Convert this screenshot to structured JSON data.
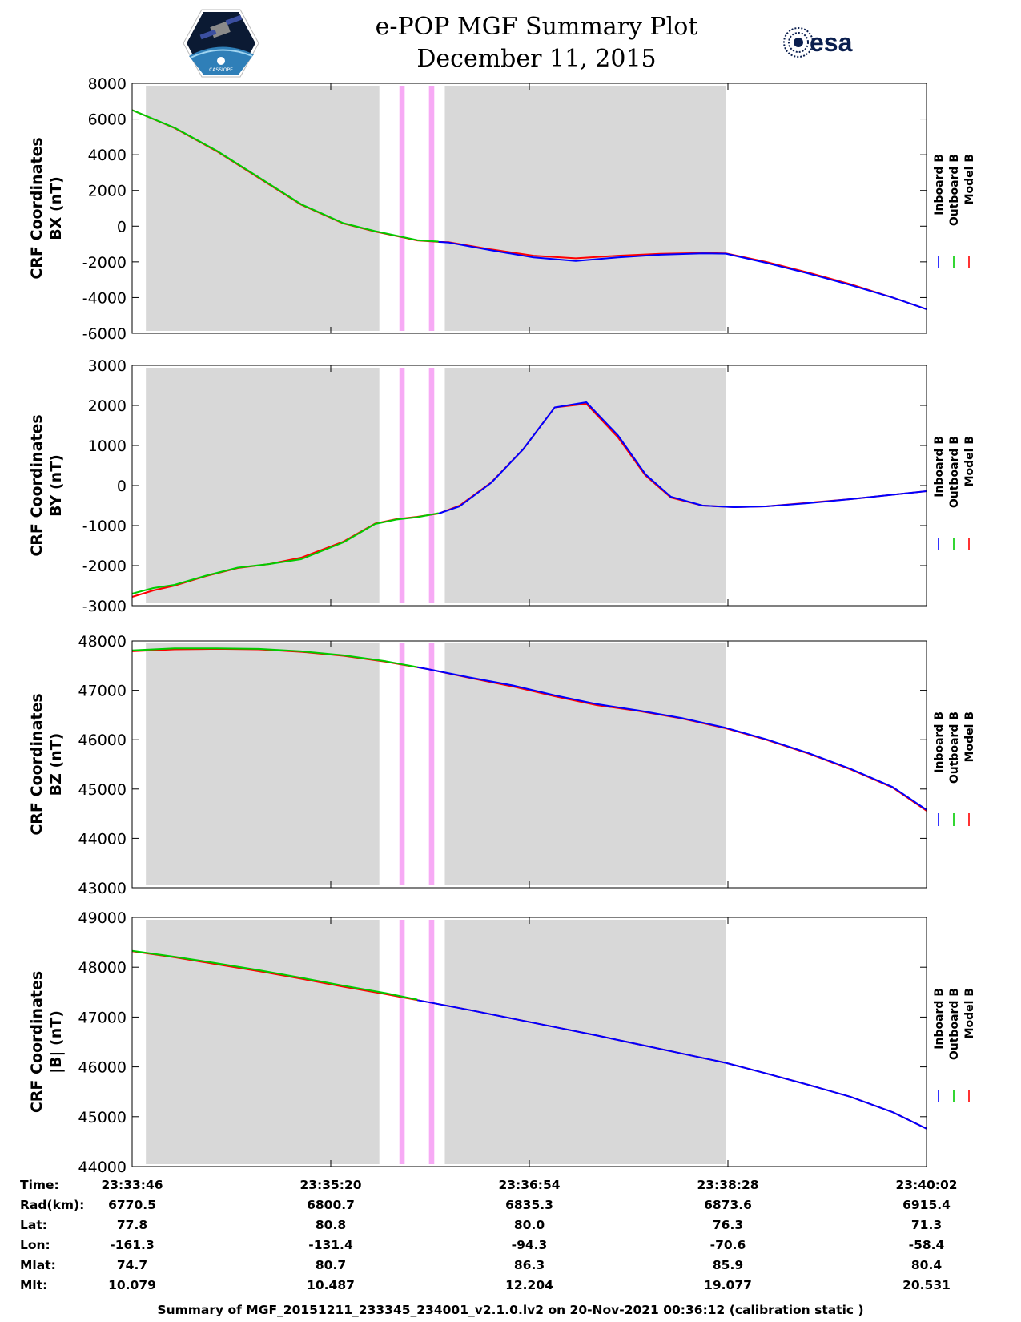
{
  "header": {
    "title": "e-POP MGF Summary Plot",
    "date": "December 11, 2015",
    "left_logo": {
      "icon": "cassiope-mission-patch",
      "text": "CASSIOPE"
    },
    "right_logo": {
      "icon": "esa-logo",
      "text": "esa"
    }
  },
  "colors": {
    "inboard": "#0000ff",
    "outboard": "#00cc00",
    "model": "#ff0000",
    "gray_band": "#d8d8d8",
    "pink_band": "#f7aaf5"
  },
  "chart_data": [
    {
      "type": "line",
      "ylabel": [
        "CRF Coordinates",
        "BX (nT)"
      ],
      "ylim": [
        -6000,
        8000
      ],
      "yticks": [
        -6000,
        -4000,
        -2000,
        0,
        2000,
        4000,
        6000,
        8000
      ],
      "xlim": [
        0,
        376
      ],
      "x_units": "seconds after 23:33:46",
      "legend": [
        "Inboard B",
        "Outboard B",
        "Model B"
      ],
      "legend_placement": "right",
      "gray_bands": [
        [
          6.5,
          117
        ],
        [
          148,
          281
        ]
      ],
      "pink_bands": [
        [
          126.5,
          129
        ],
        [
          140.5,
          143
        ]
      ],
      "series": [
        {
          "name": "Model B",
          "x": [
            0,
            20,
            40,
            60,
            80,
            100,
            115,
            125,
            135,
            145,
            150,
            170,
            190,
            210,
            230,
            250,
            270,
            281,
            300,
            320,
            340,
            360,
            376
          ],
          "y": [
            6500,
            5500,
            4200,
            2700,
            1200,
            150,
            -300,
            -550,
            -800,
            -880,
            -900,
            -1300,
            -1650,
            -1800,
            -1650,
            -1550,
            -1500,
            -1520,
            -2000,
            -2600,
            -3250,
            -4000,
            -4650
          ]
        },
        {
          "name": "Outboard B",
          "x": [
            0,
            20,
            40,
            60,
            80,
            100,
            115,
            125,
            135,
            145
          ],
          "y": [
            6500,
            5520,
            4230,
            2730,
            1230,
            170,
            -280,
            -530,
            -780,
            -860
          ]
        },
        {
          "name": "Inboard B",
          "x": [
            145,
            150,
            170,
            190,
            210,
            230,
            250,
            270,
            281,
            300,
            320,
            340,
            360,
            376
          ],
          "y": [
            -880,
            -920,
            -1350,
            -1750,
            -1950,
            -1750,
            -1600,
            -1520,
            -1540,
            -2050,
            -2650,
            -3300,
            -4000,
            -4650
          ]
        }
      ]
    },
    {
      "type": "line",
      "ylabel": [
        "CRF Coordinates",
        "BY (nT)"
      ],
      "ylim": [
        -3000,
        3000
      ],
      "yticks": [
        -3000,
        -2000,
        -1000,
        0,
        1000,
        2000,
        3000
      ],
      "xlim": [
        0,
        376
      ],
      "x_units": "seconds after 23:33:46",
      "legend": [
        "Inboard B",
        "Outboard B",
        "Model B"
      ],
      "legend_placement": "right",
      "gray_bands": [
        [
          6.5,
          117
        ],
        [
          148,
          281
        ]
      ],
      "pink_bands": [
        [
          126.5,
          129
        ],
        [
          140.5,
          143
        ]
      ],
      "series": [
        {
          "name": "Model B",
          "x": [
            0,
            10,
            20,
            35,
            50,
            65,
            80,
            100,
            115,
            125,
            135,
            145,
            155,
            170,
            185,
            200,
            215,
            230,
            243,
            255,
            270,
            285,
            300,
            320,
            340,
            376
          ],
          "y": [
            -2780,
            -2620,
            -2500,
            -2260,
            -2060,
            -1960,
            -1800,
            -1400,
            -950,
            -840,
            -780,
            -700,
            -500,
            80,
            900,
            1950,
            2040,
            1200,
            250,
            -300,
            -500,
            -540,
            -520,
            -430,
            -340,
            -140
          ]
        },
        {
          "name": "Outboard B",
          "x": [
            0,
            10,
            20,
            35,
            50,
            65,
            80,
            100,
            115,
            125,
            135,
            145
          ],
          "y": [
            -2700,
            -2560,
            -2480,
            -2250,
            -2050,
            -1960,
            -1840,
            -1420,
            -960,
            -850,
            -790,
            -690
          ]
        },
        {
          "name": "Inboard B",
          "x": [
            145,
            155,
            170,
            185,
            200,
            215,
            230,
            243,
            255,
            270,
            285,
            300,
            320,
            340,
            376
          ],
          "y": [
            -700,
            -520,
            70,
            900,
            1950,
            2080,
            1250,
            280,
            -280,
            -500,
            -540,
            -520,
            -440,
            -340,
            -140
          ]
        }
      ]
    },
    {
      "type": "line",
      "ylabel": [
        "CRF Coordinates",
        "BZ (nT)"
      ],
      "ylim": [
        43000,
        48000
      ],
      "yticks": [
        43000,
        44000,
        45000,
        46000,
        47000,
        48000
      ],
      "xlim": [
        0,
        376
      ],
      "x_units": "seconds after 23:33:46",
      "legend": [
        "Inboard B",
        "Outboard B",
        "Model B"
      ],
      "legend_placement": "right",
      "gray_bands": [
        [
          6.5,
          117
        ],
        [
          148,
          281
        ]
      ],
      "pink_bands": [
        [
          126.5,
          129
        ],
        [
          140.5,
          143
        ]
      ],
      "series": [
        {
          "name": "Model B",
          "x": [
            0,
            20,
            40,
            60,
            80,
            100,
            120,
            140,
            160,
            180,
            200,
            220,
            240,
            260,
            281,
            300,
            320,
            340,
            360,
            376
          ],
          "y": [
            47790,
            47830,
            47840,
            47830,
            47780,
            47700,
            47580,
            47430,
            47250,
            47080,
            46880,
            46700,
            46580,
            46430,
            46230,
            46000,
            45720,
            45400,
            45030,
            44560
          ]
        },
        {
          "name": "Outboard B",
          "x": [
            0,
            20,
            40,
            60,
            80,
            100,
            120,
            135
          ],
          "y": [
            47810,
            47850,
            47850,
            47840,
            47790,
            47710,
            47590,
            47470
          ]
        },
        {
          "name": "Inboard B",
          "x": [
            135,
            140,
            160,
            180,
            200,
            220,
            240,
            260,
            281,
            300,
            320,
            340,
            360,
            376
          ],
          "y": [
            47470,
            47430,
            47260,
            47100,
            46900,
            46720,
            46590,
            46440,
            46240,
            46010,
            45730,
            45410,
            45040,
            44580
          ]
        }
      ]
    },
    {
      "type": "line",
      "ylabel": [
        "CRF Coordinates",
        "|B| (nT)"
      ],
      "ylim": [
        44000,
        49000
      ],
      "yticks": [
        44000,
        45000,
        46000,
        47000,
        48000,
        49000
      ],
      "xlim": [
        0,
        376
      ],
      "x_units": "seconds after 23:33:46",
      "legend": [
        "Inboard B",
        "Outboard B",
        "Model B"
      ],
      "legend_placement": "right",
      "gray_bands": [
        [
          6.5,
          117
        ],
        [
          148,
          281
        ]
      ],
      "pink_bands": [
        [
          126.5,
          129
        ],
        [
          140.5,
          143
        ]
      ],
      "series": [
        {
          "name": "Model B",
          "x": [
            0,
            20,
            40,
            60,
            80,
            100,
            120,
            140,
            160,
            180,
            200,
            220,
            240,
            260,
            281,
            300,
            320,
            340,
            360,
            376
          ],
          "y": [
            48320,
            48200,
            48060,
            47920,
            47770,
            47610,
            47460,
            47300,
            47140,
            46970,
            46800,
            46630,
            46450,
            46270,
            46080,
            45870,
            45640,
            45400,
            45090,
            44760
          ]
        },
        {
          "name": "Outboard B",
          "x": [
            0,
            20,
            40,
            60,
            80,
            100,
            120,
            135
          ],
          "y": [
            48330,
            48210,
            48080,
            47940,
            47790,
            47630,
            47480,
            47350
          ]
        },
        {
          "name": "Inboard B",
          "x": [
            135,
            140,
            160,
            180,
            200,
            220,
            240,
            260,
            281,
            300,
            320,
            340,
            360,
            376
          ],
          "y": [
            47340,
            47300,
            47140,
            46970,
            46800,
            46630,
            46450,
            46270,
            46080,
            45870,
            45640,
            45400,
            45090,
            44760
          ]
        }
      ]
    }
  ],
  "x_ticks": [
    "23:33:46",
    "23:35:20",
    "23:36:54",
    "23:38:28",
    "23:40:02"
  ],
  "x_tick_seconds": [
    0,
    94,
    188,
    282,
    376
  ],
  "ephemeris": {
    "labels": [
      "Time:",
      "Rad(km):",
      "Lat:",
      "Lon:",
      "Mlat:",
      "Mlt:"
    ],
    "rows": [
      [
        "23:33:46",
        "23:35:20",
        "23:36:54",
        "23:38:28",
        "23:40:02"
      ],
      [
        "6770.5",
        "6800.7",
        "6835.3",
        "6873.6",
        "6915.4"
      ],
      [
        "77.8",
        "80.8",
        "80.0",
        "76.3",
        "71.3"
      ],
      [
        "-161.3",
        "-131.4",
        "-94.3",
        "-70.6",
        "-58.4"
      ],
      [
        "74.7",
        "80.7",
        "86.3",
        "85.9",
        "80.4"
      ],
      [
        "10.079",
        "10.487",
        "12.204",
        "19.077",
        "20.531"
      ]
    ]
  },
  "footer": "Summary of MGF_20151211_233345_234001_v2.1.0.lv2 on 20-Nov-2021 00:36:12 (calibration static )"
}
